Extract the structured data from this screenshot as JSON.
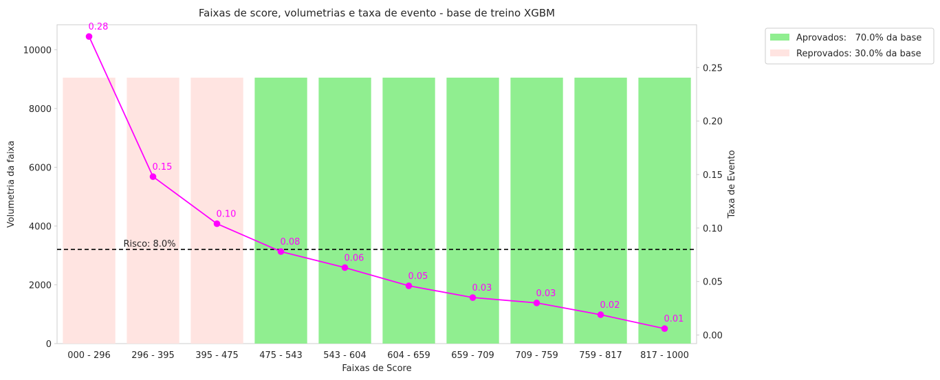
{
  "chart_data": {
    "type": "bar",
    "title": "Faixas de score, volumetrias e taxa de evento - base de treino XGBM",
    "xlabel": "Faixas de Score",
    "ylabel": "Volumetria da faixa",
    "y2label": "Taxa de Evento",
    "categories": [
      "000 - 296",
      "296 - 395",
      "395 - 475",
      "475 - 543",
      "543 - 604",
      "604 - 659",
      "659 - 709",
      "709 - 759",
      "759 - 817",
      "817 - 1000"
    ],
    "ylim": [
      0,
      10850
    ],
    "y2lim": [
      -0.008,
      0.29
    ],
    "yticks": [
      0,
      2000,
      4000,
      6000,
      8000,
      10000
    ],
    "y2ticks": [
      "0.00",
      "0.05",
      "0.10",
      "0.15",
      "0.20",
      "0.25"
    ],
    "series": [
      {
        "name": "Volumetria",
        "kind": "bar",
        "values": [
          9050,
          9050,
          9050,
          9050,
          9050,
          9050,
          9050,
          9050,
          9050,
          9050
        ],
        "groups": [
          "reprovados",
          "reprovados",
          "reprovados",
          "aprovados",
          "aprovados",
          "aprovados",
          "aprovados",
          "aprovados",
          "aprovados",
          "aprovados"
        ]
      },
      {
        "name": "Taxa de Evento",
        "kind": "line",
        "axis": "right",
        "color": "#ff00ff",
        "values": [
          0.279,
          0.148,
          0.104,
          0.078,
          0.063,
          0.046,
          0.035,
          0.03,
          0.019,
          0.006
        ],
        "labels": [
          "0.28",
          "0.15",
          "0.10",
          "0.08",
          "0.06",
          "0.05",
          "0.03",
          "0.03",
          "0.02",
          "0.01"
        ]
      }
    ],
    "reference_line": {
      "value": 0.08,
      "axis": "right",
      "label": "Risco: 8.0%",
      "style": "dashed",
      "color": "#000000"
    },
    "legend": {
      "placement": "outside-top-right",
      "entries": [
        {
          "key": "aprovados",
          "label": "Aprovados:   70.0% da base",
          "color": "#90ee90"
        },
        {
          "key": "reprovados",
          "label": "Reprovados: 30.0% da base",
          "color": "#ffe4e1"
        }
      ]
    },
    "grid": false
  }
}
